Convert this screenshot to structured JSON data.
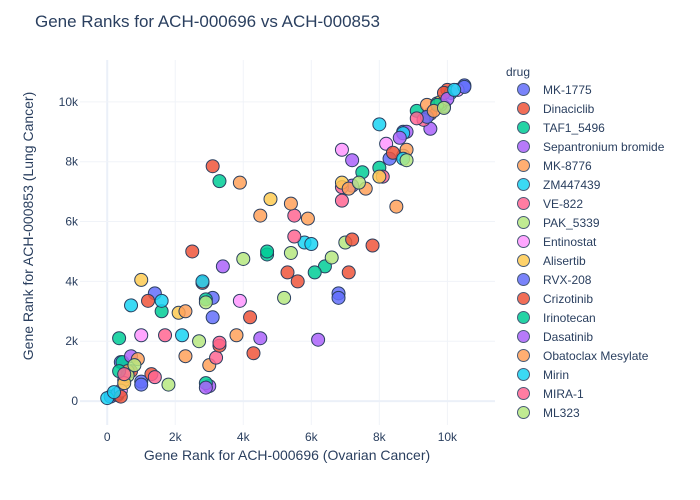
{
  "chart_data": {
    "type": "scatter",
    "title": "Gene Ranks for ACH-000696 vs ACH-000853",
    "xlabel": "Gene Rank for ACH-000696 (Ovarian Cancer)",
    "ylabel": "Gene Rank for ACH-000853 (Lung Cancer)",
    "xlim": [
      -800,
      11400
    ],
    "ylim": [
      -800,
      11400
    ],
    "x_ticks": [
      0,
      2000,
      4000,
      6000,
      8000,
      10000
    ],
    "x_tick_labels": [
      "0",
      "2k",
      "4k",
      "6k",
      "8k",
      "10k"
    ],
    "y_ticks": [
      0,
      2000,
      4000,
      6000,
      8000,
      10000
    ],
    "y_tick_labels": [
      "0",
      "2k",
      "4k",
      "6k",
      "8k",
      "10k"
    ],
    "grid": true,
    "legend_title": "drug",
    "legend_position": "right",
    "series": [
      {
        "name": "MK-1775",
        "color": "#636efa",
        "points": [
          [
            100,
            150
          ],
          [
            400,
            1300
          ],
          [
            1000,
            650
          ],
          [
            3100,
            3450
          ],
          [
            6800,
            3600
          ],
          [
            8700,
            9000
          ],
          [
            9900,
            9850
          ],
          [
            10500,
            10550
          ]
        ]
      },
      {
        "name": "Dinaciclib",
        "color": "#EF553B",
        "points": [
          [
            300,
            200
          ],
          [
            700,
            1000
          ],
          [
            1300,
            900
          ],
          [
            2500,
            5000
          ],
          [
            3100,
            7850
          ],
          [
            4300,
            1600
          ],
          [
            5300,
            4300
          ],
          [
            7100,
            4300
          ],
          [
            7800,
            5200
          ],
          [
            9500,
            9600
          ],
          [
            10000,
            10400
          ]
        ]
      },
      {
        "name": "TAF1_5496",
        "color": "#00cc96",
        "points": [
          [
            350,
            2100
          ],
          [
            450,
            1300
          ],
          [
            2900,
            3400
          ],
          [
            3300,
            7350
          ],
          [
            4700,
            4900
          ],
          [
            6400,
            4500
          ],
          [
            8000,
            7800
          ],
          [
            9100,
            9700
          ],
          [
            9800,
            9900
          ]
        ]
      },
      {
        "name": "Sepantronium bromide",
        "color": "#ab63fa",
        "points": [
          [
            300,
            250
          ],
          [
            3000,
            500
          ],
          [
            3400,
            4500
          ],
          [
            6200,
            2050
          ],
          [
            7200,
            7200
          ],
          [
            8800,
            9000
          ],
          [
            9500,
            9100
          ]
        ]
      },
      {
        "name": "MK-8776",
        "color": "#FFA15A",
        "points": [
          [
            600,
            1000
          ],
          [
            2300,
            1500
          ],
          [
            3000,
            1200
          ],
          [
            3800,
            2200
          ],
          [
            4500,
            6200
          ],
          [
            5900,
            6100
          ],
          [
            7600,
            7100
          ],
          [
            8500,
            6500
          ],
          [
            9400,
            9900
          ]
        ]
      },
      {
        "name": "ZM447439",
        "color": "#19d3f3",
        "points": [
          [
            0,
            100
          ],
          [
            700,
            3200
          ],
          [
            2200,
            2200
          ],
          [
            5800,
            5300
          ],
          [
            8000,
            9250
          ],
          [
            8700,
            8950
          ],
          [
            10100,
            10300
          ]
        ]
      },
      {
        "name": "VE-822",
        "color": "#FF6692",
        "points": [
          [
            500,
            700
          ],
          [
            1700,
            2200
          ],
          [
            3200,
            1450
          ],
          [
            5500,
            6200
          ],
          [
            6900,
            7150
          ],
          [
            8100,
            7500
          ],
          [
            9300,
            9400
          ]
        ]
      },
      {
        "name": "PAK_5339",
        "color": "#B6E880",
        "points": [
          [
            600,
            850
          ],
          [
            1800,
            550
          ],
          [
            2900,
            3300
          ],
          [
            4000,
            4750
          ],
          [
            5400,
            4950
          ],
          [
            7000,
            5300
          ],
          [
            8700,
            8200
          ],
          [
            9700,
            9950
          ]
        ]
      },
      {
        "name": "Entinostat",
        "color": "#FF97FF",
        "points": [
          [
            400,
            350
          ],
          [
            1000,
            2200
          ],
          [
            3900,
            3350
          ],
          [
            6900,
            8400
          ],
          [
            8200,
            8600
          ],
          [
            10300,
            10400
          ]
        ]
      },
      {
        "name": "Alisertib",
        "color": "#FECB52",
        "points": [
          [
            500,
            600
          ],
          [
            1000,
            4050
          ],
          [
            2100,
            2950
          ],
          [
            4800,
            6750
          ],
          [
            6900,
            7300
          ],
          [
            8000,
            7500
          ],
          [
            9800,
            10000
          ]
        ]
      },
      {
        "name": "RVX-208",
        "color": "#636efa",
        "points": [
          [
            1000,
            550
          ],
          [
            1400,
            3600
          ],
          [
            3100,
            2800
          ],
          [
            6800,
            3450
          ],
          [
            8300,
            8100
          ],
          [
            9400,
            9500
          ],
          [
            10500,
            10500
          ]
        ]
      },
      {
        "name": "Crizotinib",
        "color": "#EF553B",
        "points": [
          [
            400,
            150
          ],
          [
            1200,
            3350
          ],
          [
            2800,
            3950
          ],
          [
            3300,
            1850
          ],
          [
            4200,
            2800
          ],
          [
            5600,
            4000
          ],
          [
            7200,
            5400
          ],
          [
            8400,
            8300
          ],
          [
            9900,
            10300
          ]
        ]
      },
      {
        "name": "Irinotecan",
        "color": "#00cc96",
        "points": [
          [
            350,
            1000
          ],
          [
            1600,
            3000
          ],
          [
            2900,
            600
          ],
          [
            4700,
            5000
          ],
          [
            6100,
            4300
          ],
          [
            7500,
            7650
          ],
          [
            9700,
            9900
          ]
        ]
      },
      {
        "name": "Dasatinib",
        "color": "#ab63fa",
        "points": [
          [
            700,
            1500
          ],
          [
            2900,
            450
          ],
          [
            4500,
            2100
          ],
          [
            7200,
            8050
          ],
          [
            8600,
            8800
          ],
          [
            10000,
            10100
          ]
        ]
      },
      {
        "name": "Obatoclax Mesylate",
        "color": "#FFA15A",
        "points": [
          [
            900,
            1400
          ],
          [
            2300,
            3000
          ],
          [
            3900,
            7300
          ],
          [
            5400,
            6600
          ],
          [
            7100,
            7100
          ],
          [
            8800,
            8400
          ],
          [
            9600,
            9700
          ]
        ]
      },
      {
        "name": "Mirin",
        "color": "#19d3f3",
        "points": [
          [
            200,
            300
          ],
          [
            1600,
            3350
          ],
          [
            2800,
            4000
          ],
          [
            6000,
            5250
          ],
          [
            8700,
            8100
          ],
          [
            10200,
            10400
          ]
        ]
      },
      {
        "name": "MIRA-1",
        "color": "#FF6692",
        "points": [
          [
            500,
            900
          ],
          [
            1400,
            800
          ],
          [
            3300,
            1950
          ],
          [
            5500,
            5500
          ],
          [
            6900,
            6700
          ],
          [
            9100,
            9450
          ]
        ]
      },
      {
        "name": "ML323",
        "color": "#B6E880",
        "points": [
          [
            800,
            1200
          ],
          [
            2700,
            2000
          ],
          [
            5200,
            3450
          ],
          [
            6600,
            4800
          ],
          [
            7400,
            7300
          ],
          [
            8800,
            8050
          ],
          [
            9900,
            9800
          ]
        ]
      }
    ]
  }
}
